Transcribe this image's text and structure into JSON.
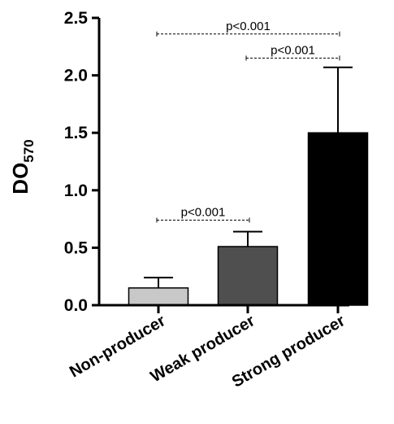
{
  "chart_data": {
    "type": "bar",
    "title": "",
    "ylabel": "DO",
    "ylabel_subscript": "570",
    "xlabel": "",
    "categories": [
      "Non-producer",
      "Weak producer",
      "Strong producer"
    ],
    "values": [
      0.15,
      0.51,
      1.5
    ],
    "errors": [
      0.09,
      0.13,
      0.57
    ],
    "colors": [
      "#c8c8c8",
      "#4f4f4f",
      "#000000"
    ],
    "ylim": [
      0,
      2.5
    ],
    "yticks": [
      "0.0",
      "0.5",
      "1.0",
      "1.5",
      "2.0",
      "2.5"
    ],
    "grid": false,
    "legend": "none",
    "significance": [
      {
        "from": 0,
        "to": 2,
        "y": 2.36,
        "label": "p<0.001"
      },
      {
        "from": 1,
        "to": 2,
        "y": 2.15,
        "label": "p<0.001"
      },
      {
        "from": 0,
        "to": 1,
        "y": 0.74,
        "label": "p<0.001"
      }
    ]
  }
}
